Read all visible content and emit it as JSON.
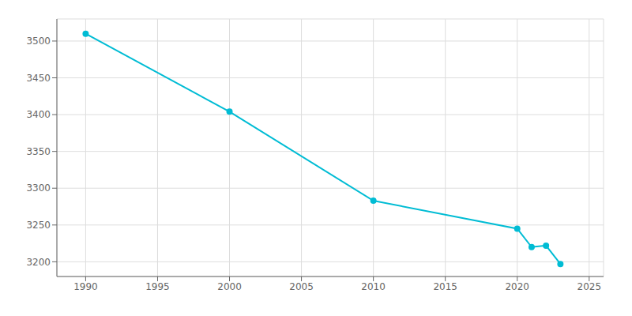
{
  "chart_data": {
    "type": "line",
    "x": [
      1990,
      2000,
      2010,
      2020,
      2021,
      2022,
      2023
    ],
    "values": [
      3510,
      3404,
      3283,
      3245,
      3220,
      3222,
      3197
    ],
    "color": "#00BCD4",
    "marker": "circle",
    "xlim": [
      1988,
      2026
    ],
    "ylim": [
      3180,
      3530
    ],
    "xticks": [
      1990,
      1995,
      2000,
      2005,
      2010,
      2015,
      2020,
      2025
    ],
    "yticks": [
      3200,
      3250,
      3300,
      3350,
      3400,
      3450,
      3500
    ],
    "grid": true
  }
}
